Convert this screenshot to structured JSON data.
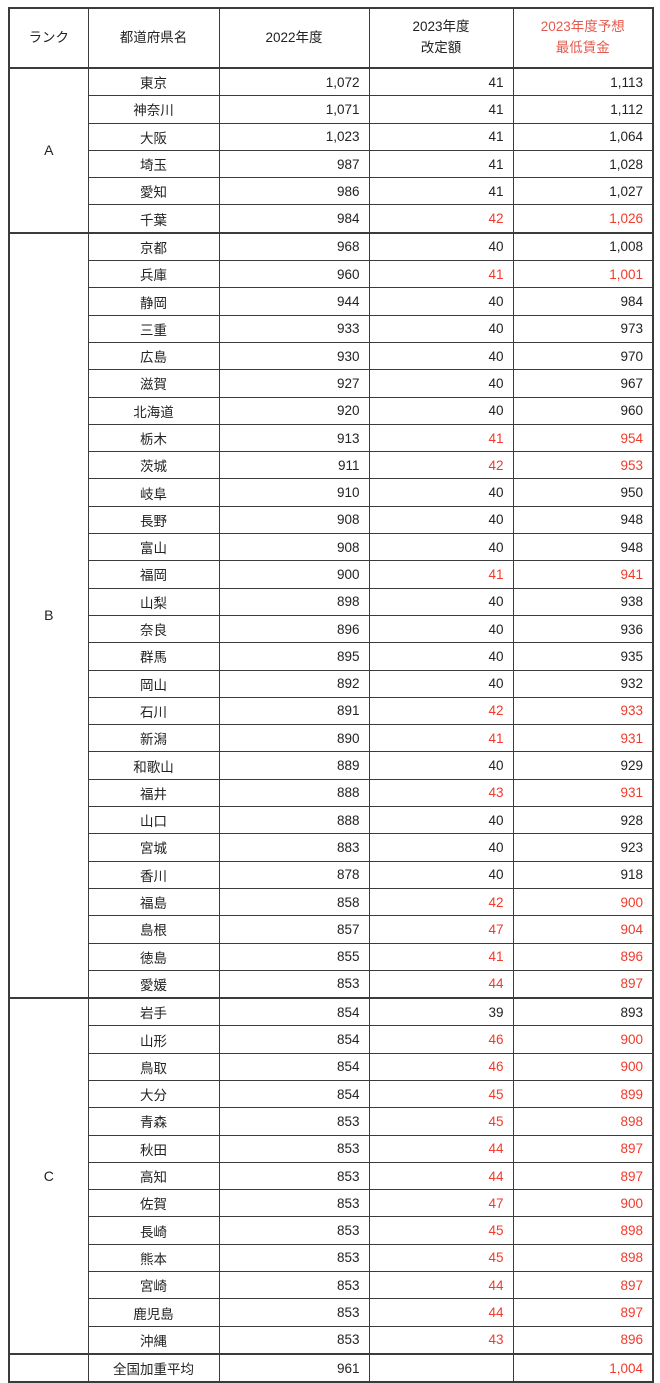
{
  "colors": {
    "red": "#f03a2b",
    "header_red": "#e45a4e",
    "border": "#3b3b3b",
    "text": "#222222"
  },
  "chart_data": {
    "type": "table",
    "title": "",
    "headers": {
      "rank": "ランク",
      "prefecture": "都道府県名",
      "y2022": "2022年度",
      "revision_line1": "2023年度",
      "revision_line2": "改定額",
      "forecast_line1": "2023年度予想",
      "forecast_line2": "最低賃金"
    },
    "sections": [
      {
        "rank": "A",
        "rows": [
          {
            "name": "東京",
            "y2022": "1,072",
            "rev": "41",
            "rev_red": false,
            "fc": "1,113",
            "fc_red": false
          },
          {
            "name": "神奈川",
            "y2022": "1,071",
            "rev": "41",
            "rev_red": false,
            "fc": "1,112",
            "fc_red": false
          },
          {
            "name": "大阪",
            "y2022": "1,023",
            "rev": "41",
            "rev_red": false,
            "fc": "1,064",
            "fc_red": false
          },
          {
            "name": "埼玉",
            "y2022": "987",
            "rev": "41",
            "rev_red": false,
            "fc": "1,028",
            "fc_red": false
          },
          {
            "name": "愛知",
            "y2022": "986",
            "rev": "41",
            "rev_red": false,
            "fc": "1,027",
            "fc_red": false
          },
          {
            "name": "千葉",
            "y2022": "984",
            "rev": "42",
            "rev_red": true,
            "fc": "1,026",
            "fc_red": true
          }
        ]
      },
      {
        "rank": "B",
        "rows": [
          {
            "name": "京都",
            "y2022": "968",
            "rev": "40",
            "rev_red": false,
            "fc": "1,008",
            "fc_red": false
          },
          {
            "name": "兵庫",
            "y2022": "960",
            "rev": "41",
            "rev_red": true,
            "fc": "1,001",
            "fc_red": true
          },
          {
            "name": "静岡",
            "y2022": "944",
            "rev": "40",
            "rev_red": false,
            "fc": "984",
            "fc_red": false
          },
          {
            "name": "三重",
            "y2022": "933",
            "rev": "40",
            "rev_red": false,
            "fc": "973",
            "fc_red": false
          },
          {
            "name": "広島",
            "y2022": "930",
            "rev": "40",
            "rev_red": false,
            "fc": "970",
            "fc_red": false
          },
          {
            "name": "滋賀",
            "y2022": "927",
            "rev": "40",
            "rev_red": false,
            "fc": "967",
            "fc_red": false
          },
          {
            "name": "北海道",
            "y2022": "920",
            "rev": "40",
            "rev_red": false,
            "fc": "960",
            "fc_red": false
          },
          {
            "name": "栃木",
            "y2022": "913",
            "rev": "41",
            "rev_red": true,
            "fc": "954",
            "fc_red": true
          },
          {
            "name": "茨城",
            "y2022": "911",
            "rev": "42",
            "rev_red": true,
            "fc": "953",
            "fc_red": true
          },
          {
            "name": "岐阜",
            "y2022": "910",
            "rev": "40",
            "rev_red": false,
            "fc": "950",
            "fc_red": false
          },
          {
            "name": "長野",
            "y2022": "908",
            "rev": "40",
            "rev_red": false,
            "fc": "948",
            "fc_red": false
          },
          {
            "name": "富山",
            "y2022": "908",
            "rev": "40",
            "rev_red": false,
            "fc": "948",
            "fc_red": false
          },
          {
            "name": "福岡",
            "y2022": "900",
            "rev": "41",
            "rev_red": true,
            "fc": "941",
            "fc_red": true
          },
          {
            "name": "山梨",
            "y2022": "898",
            "rev": "40",
            "rev_red": false,
            "fc": "938",
            "fc_red": false
          },
          {
            "name": "奈良",
            "y2022": "896",
            "rev": "40",
            "rev_red": false,
            "fc": "936",
            "fc_red": false
          },
          {
            "name": "群馬",
            "y2022": "895",
            "rev": "40",
            "rev_red": false,
            "fc": "935",
            "fc_red": false
          },
          {
            "name": "岡山",
            "y2022": "892",
            "rev": "40",
            "rev_red": false,
            "fc": "932",
            "fc_red": false
          },
          {
            "name": "石川",
            "y2022": "891",
            "rev": "42",
            "rev_red": true,
            "fc": "933",
            "fc_red": true
          },
          {
            "name": "新潟",
            "y2022": "890",
            "rev": "41",
            "rev_red": true,
            "fc": "931",
            "fc_red": true
          },
          {
            "name": "和歌山",
            "y2022": "889",
            "rev": "40",
            "rev_red": false,
            "fc": "929",
            "fc_red": false
          },
          {
            "name": "福井",
            "y2022": "888",
            "rev": "43",
            "rev_red": true,
            "fc": "931",
            "fc_red": true
          },
          {
            "name": "山口",
            "y2022": "888",
            "rev": "40",
            "rev_red": false,
            "fc": "928",
            "fc_red": false
          },
          {
            "name": "宮城",
            "y2022": "883",
            "rev": "40",
            "rev_red": false,
            "fc": "923",
            "fc_red": false
          },
          {
            "name": "香川",
            "y2022": "878",
            "rev": "40",
            "rev_red": false,
            "fc": "918",
            "fc_red": false
          },
          {
            "name": "福島",
            "y2022": "858",
            "rev": "42",
            "rev_red": true,
            "fc": "900",
            "fc_red": true
          },
          {
            "name": "島根",
            "y2022": "857",
            "rev": "47",
            "rev_red": true,
            "fc": "904",
            "fc_red": true
          },
          {
            "name": "徳島",
            "y2022": "855",
            "rev": "41",
            "rev_red": true,
            "fc": "896",
            "fc_red": true
          },
          {
            "name": "愛媛",
            "y2022": "853",
            "rev": "44",
            "rev_red": true,
            "fc": "897",
            "fc_red": true
          }
        ]
      },
      {
        "rank": "C",
        "rows": [
          {
            "name": "岩手",
            "y2022": "854",
            "rev": "39",
            "rev_red": false,
            "fc": "893",
            "fc_red": false
          },
          {
            "name": "山形",
            "y2022": "854",
            "rev": "46",
            "rev_red": true,
            "fc": "900",
            "fc_red": true
          },
          {
            "name": "鳥取",
            "y2022": "854",
            "rev": "46",
            "rev_red": true,
            "fc": "900",
            "fc_red": true
          },
          {
            "name": "大分",
            "y2022": "854",
            "rev": "45",
            "rev_red": true,
            "fc": "899",
            "fc_red": true
          },
          {
            "name": "青森",
            "y2022": "853",
            "rev": "45",
            "rev_red": true,
            "fc": "898",
            "fc_red": true
          },
          {
            "name": "秋田",
            "y2022": "853",
            "rev": "44",
            "rev_red": true,
            "fc": "897",
            "fc_red": true
          },
          {
            "name": "高知",
            "y2022": "853",
            "rev": "44",
            "rev_red": true,
            "fc": "897",
            "fc_red": true
          },
          {
            "name": "佐賀",
            "y2022": "853",
            "rev": "47",
            "rev_red": true,
            "fc": "900",
            "fc_red": true
          },
          {
            "name": "長崎",
            "y2022": "853",
            "rev": "45",
            "rev_red": true,
            "fc": "898",
            "fc_red": true
          },
          {
            "name": "熊本",
            "y2022": "853",
            "rev": "45",
            "rev_red": true,
            "fc": "898",
            "fc_red": true
          },
          {
            "name": "宮崎",
            "y2022": "853",
            "rev": "44",
            "rev_red": true,
            "fc": "897",
            "fc_red": true
          },
          {
            "name": "鹿児島",
            "y2022": "853",
            "rev": "44",
            "rev_red": true,
            "fc": "897",
            "fc_red": true
          },
          {
            "name": "沖縄",
            "y2022": "853",
            "rev": "43",
            "rev_red": true,
            "fc": "896",
            "fc_red": true
          }
        ]
      }
    ],
    "footer": {
      "rank": "",
      "name": "全国加重平均",
      "y2022": "961",
      "rev": "",
      "rev_red": false,
      "fc": "1,004",
      "fc_red": true
    }
  }
}
